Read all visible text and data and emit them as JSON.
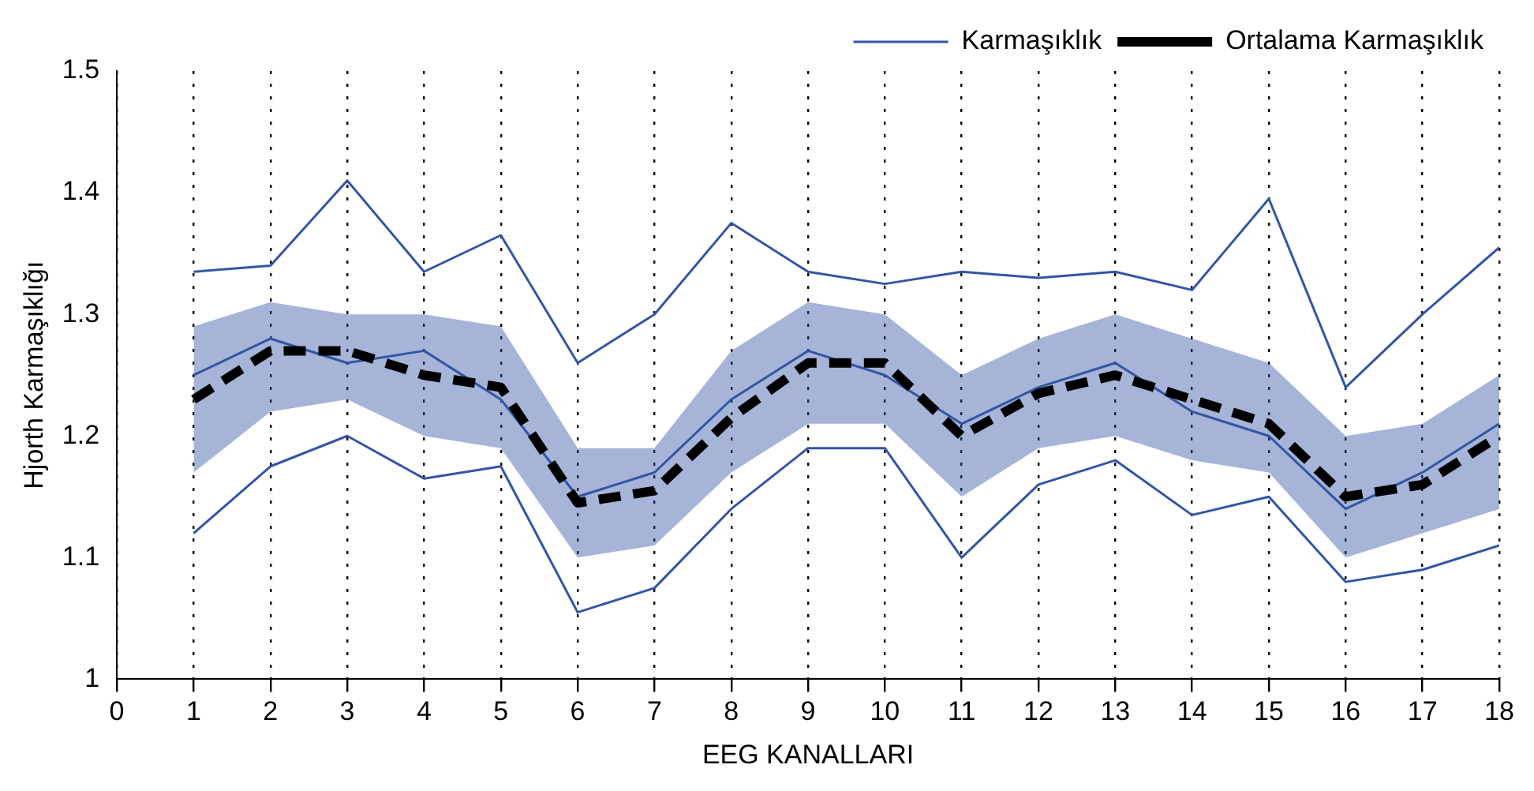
{
  "chart_data": {
    "type": "line",
    "xlabel": "EEG KANALLARI",
    "ylabel": "Hjorth Karmaşıklığı",
    "x": [
      1,
      2,
      3,
      4,
      5,
      6,
      7,
      8,
      9,
      10,
      11,
      12,
      13,
      14,
      15,
      16,
      17,
      18
    ],
    "xlim": [
      0,
      18
    ],
    "xticks": [
      0,
      1,
      2,
      3,
      4,
      5,
      6,
      7,
      8,
      9,
      10,
      11,
      12,
      13,
      14,
      15,
      16,
      17,
      18
    ],
    "ylim": [
      1,
      1.5
    ],
    "yticks": [
      1,
      1.1,
      1.2,
      1.3,
      1.4,
      1.5
    ],
    "grid": "x",
    "legend": "top right",
    "marker": "none",
    "series": [
      {
        "name": "Karmaşıklık",
        "color": "#3355a5",
        "line_style": "solid",
        "values": [
          1.25,
          1.28,
          1.26,
          1.27,
          1.23,
          1.15,
          1.17,
          1.23,
          1.27,
          1.25,
          1.21,
          1.24,
          1.26,
          1.22,
          1.2,
          1.14,
          1.17,
          1.21
        ],
        "lower": [
          1.17,
          1.22,
          1.23,
          1.2,
          1.19,
          1.1,
          1.11,
          1.17,
          1.21,
          1.21,
          1.15,
          1.19,
          1.2,
          1.18,
          1.17,
          1.1,
          1.12,
          1.14
        ],
        "upper": [
          1.29,
          1.31,
          1.3,
          1.3,
          1.29,
          1.19,
          1.19,
          1.27,
          1.31,
          1.3,
          1.25,
          1.28,
          1.3,
          1.28,
          1.26,
          1.2,
          1.21,
          1.25
        ]
      },
      {
        "color": "#3355a5",
        "line_style": "solid",
        "values": [
          1.335,
          1.34,
          1.41,
          1.335,
          1.365,
          1.26,
          1.3,
          1.375,
          1.335,
          1.325,
          1.335,
          1.33,
          1.335,
          1.32,
          1.395,
          1.24,
          1.3,
          1.355
        ]
      },
      {
        "color": "#3355a5",
        "line_style": "solid",
        "values": [
          1.12,
          1.175,
          1.2,
          1.165,
          1.175,
          1.055,
          1.075,
          1.14,
          1.19,
          1.19,
          1.1,
          1.16,
          1.18,
          1.135,
          1.15,
          1.08,
          1.09,
          1.11
        ]
      },
      {
        "name": "Ortalama Karmaşıklık",
        "color": "#000000",
        "line_style": "dashed",
        "values": [
          1.23,
          1.27,
          1.27,
          1.25,
          1.24,
          1.145,
          1.155,
          1.215,
          1.26,
          1.26,
          1.2,
          1.235,
          1.25,
          1.23,
          1.21,
          1.15,
          1.16,
          1.2
        ]
      }
    ]
  }
}
